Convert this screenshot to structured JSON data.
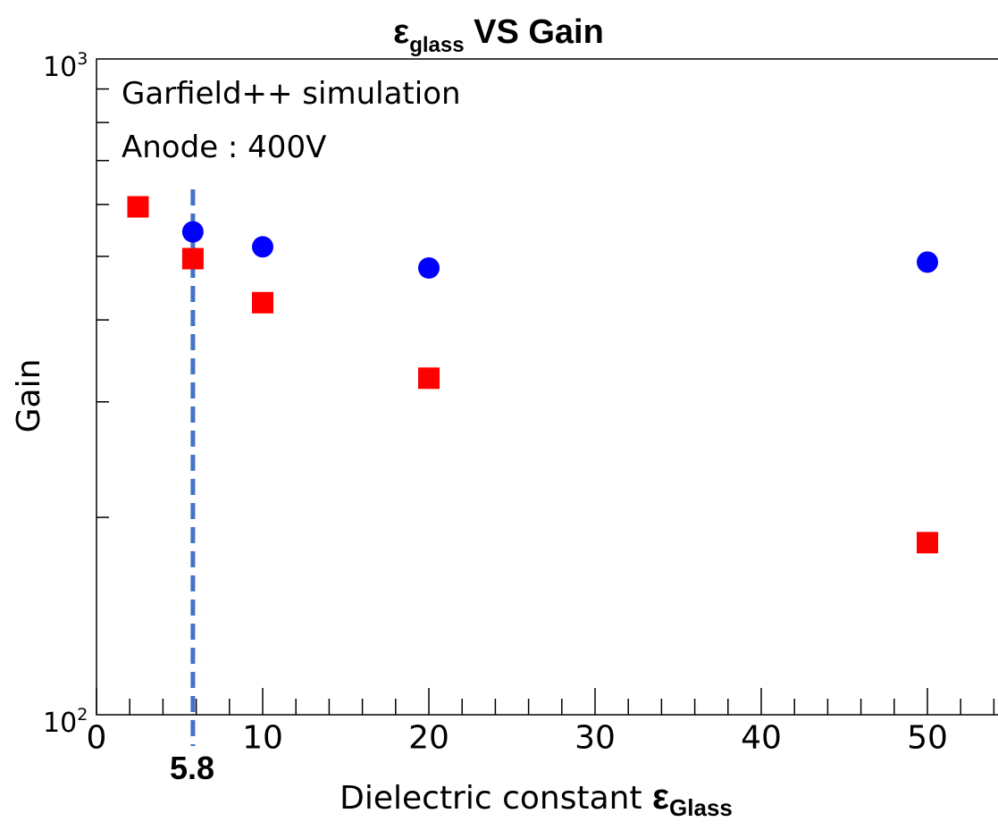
{
  "chart_data": {
    "type": "scatter",
    "title_main": "ε",
    "title_sub": "glass",
    "title_rest": " VS Gain",
    "xlabel": "Dielectric constant ",
    "xlabel_symbol": "ε",
    "xlabel_sub": "Glass",
    "ylabel": "Gain",
    "xlim": [
      0,
      54
    ],
    "ylim": [
      100,
      1000
    ],
    "yscale": "log",
    "x_ticks": [
      "0",
      "10",
      "20",
      "30",
      "40",
      "50"
    ],
    "y_ticks": [
      {
        "base": "10",
        "exp": "2"
      },
      {
        "base": "10",
        "exp": "3"
      }
    ],
    "annotations": [
      "Garfield++ simulation",
      "Anode : 400V"
    ],
    "reference_line": {
      "x": 5.8,
      "label": "5.8",
      "color": "#4472C4"
    },
    "series": [
      {
        "marker": "circle",
        "color": "#0000FF",
        "x": [
          2.5,
          5.8,
          10,
          20,
          50
        ],
        "y": [
          595,
          545,
          517,
          480,
          490
        ]
      },
      {
        "marker": "square",
        "color": "#FF0000",
        "x": [
          2.5,
          5.8,
          10,
          20,
          50
        ],
        "y": [
          595,
          496,
          425,
          326,
          183
        ]
      }
    ],
    "grid": false
  }
}
